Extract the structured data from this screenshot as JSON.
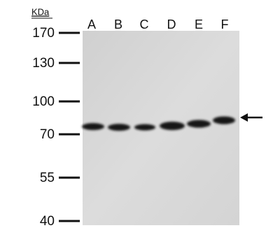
{
  "unit": "KDa",
  "markers": [
    "170",
    "130",
    "100",
    "70",
    "55",
    "40"
  ],
  "lanes": [
    "A",
    "B",
    "C",
    "D",
    "E",
    "F"
  ]
}
